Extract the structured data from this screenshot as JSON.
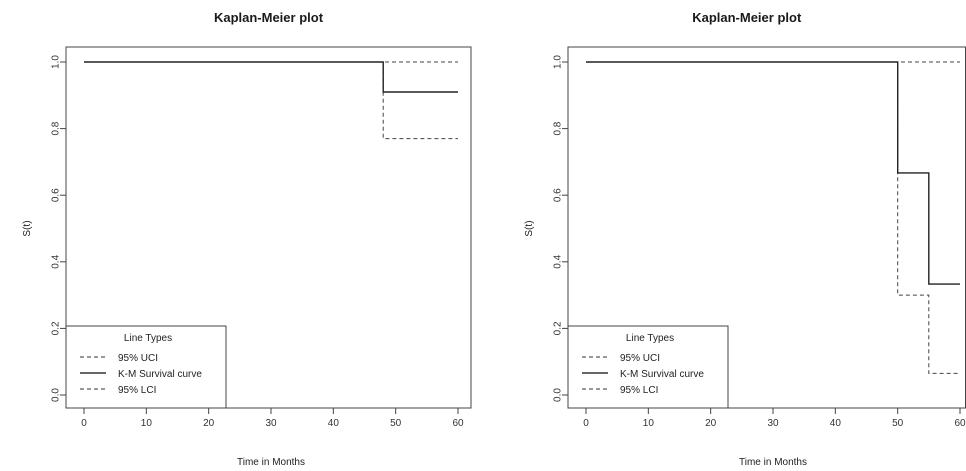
{
  "chart_data": [
    {
      "type": "line",
      "title": "Kaplan-Meier plot",
      "xlabel": "Time in Months",
      "ylabel": "S(t)",
      "xlim": [
        0,
        60
      ],
      "ylim": [
        0,
        1
      ],
      "xticks": [
        "0",
        "10",
        "20",
        "30",
        "40",
        "50",
        "60"
      ],
      "yticks": [
        "0.0",
        "0.2",
        "0.4",
        "0.6",
        "0.8",
        "1.0"
      ],
      "legend": {
        "title": "Line Types",
        "entries": [
          "95% UCI",
          "K-M Survival curve",
          "95% LCI"
        ],
        "position": "bottom-left"
      },
      "series": [
        {
          "name": "95% UCI",
          "style": "dashed",
          "x": [
            0,
            48,
            60
          ],
          "y": [
            1.0,
            1.0,
            1.0
          ]
        },
        {
          "name": "K-M Survival curve",
          "style": "solid",
          "x": [
            0,
            48,
            48,
            60
          ],
          "y": [
            1.0,
            1.0,
            0.91,
            0.91
          ]
        },
        {
          "name": "95% LCI",
          "style": "dashed",
          "x": [
            0,
            48,
            48,
            60
          ],
          "y": [
            1.0,
            1.0,
            0.77,
            0.77
          ]
        }
      ]
    },
    {
      "type": "line",
      "title": "Kaplan-Meier plot",
      "xlabel": "Time in Months",
      "ylabel": "S(t)",
      "xlim": [
        0,
        60
      ],
      "ylim": [
        0,
        1
      ],
      "xticks": [
        "0",
        "10",
        "20",
        "30",
        "40",
        "50",
        "60"
      ],
      "yticks": [
        "0.0",
        "0.2",
        "0.4",
        "0.6",
        "0.8",
        "1.0"
      ],
      "legend": {
        "title": "Line Types",
        "entries": [
          "95% UCI",
          "K-M Survival curve",
          "95% LCI"
        ],
        "position": "bottom-left"
      },
      "series": [
        {
          "name": "95% UCI",
          "style": "dashed",
          "x": [
            0,
            50,
            60
          ],
          "y": [
            1.0,
            1.0,
            1.0
          ]
        },
        {
          "name": "K-M Survival curve",
          "style": "solid",
          "x": [
            0,
            50,
            50,
            55,
            55,
            60
          ],
          "y": [
            1.0,
            1.0,
            0.667,
            0.667,
            0.333,
            0.333
          ]
        },
        {
          "name": "95% LCI",
          "style": "dashed",
          "x": [
            0,
            50,
            50,
            55,
            55,
            60
          ],
          "y": [
            1.0,
            1.0,
            0.3,
            0.3,
            0.065,
            0.065
          ]
        }
      ]
    }
  ]
}
